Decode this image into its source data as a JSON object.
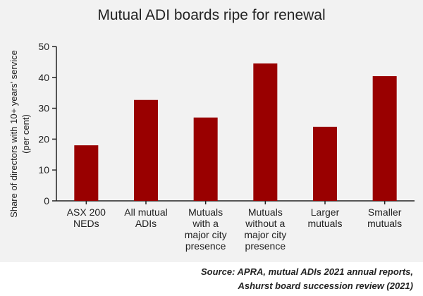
{
  "chart_data": {
    "type": "bar",
    "title": "Mutual ADI boards ripe for renewal",
    "ylabel_lines": [
      "Share of directors with 10+ years' service",
      "(per cent)"
    ],
    "categories": [
      [
        "ASX 200",
        "NEDs"
      ],
      [
        "All mutual",
        "ADIs"
      ],
      [
        "Mutuals",
        "with a",
        "major city",
        "presence"
      ],
      [
        "Mutuals",
        "without a",
        "major city",
        "presence"
      ],
      [
        "Larger",
        "mutuals"
      ],
      [
        "Smaller",
        "mutuals"
      ]
    ],
    "values": [
      18,
      32.7,
      27,
      44.5,
      24,
      40.4
    ],
    "ylim": [
      0,
      50
    ],
    "yticks": [
      0,
      10,
      20,
      30,
      40,
      50
    ],
    "bar_color": "#990000",
    "grid": false,
    "legend": "none"
  },
  "source": {
    "line1": "Source: APRA, mutual ADIs 2021 annual reports,",
    "line2": "Ashurst board succession review (2021)"
  }
}
